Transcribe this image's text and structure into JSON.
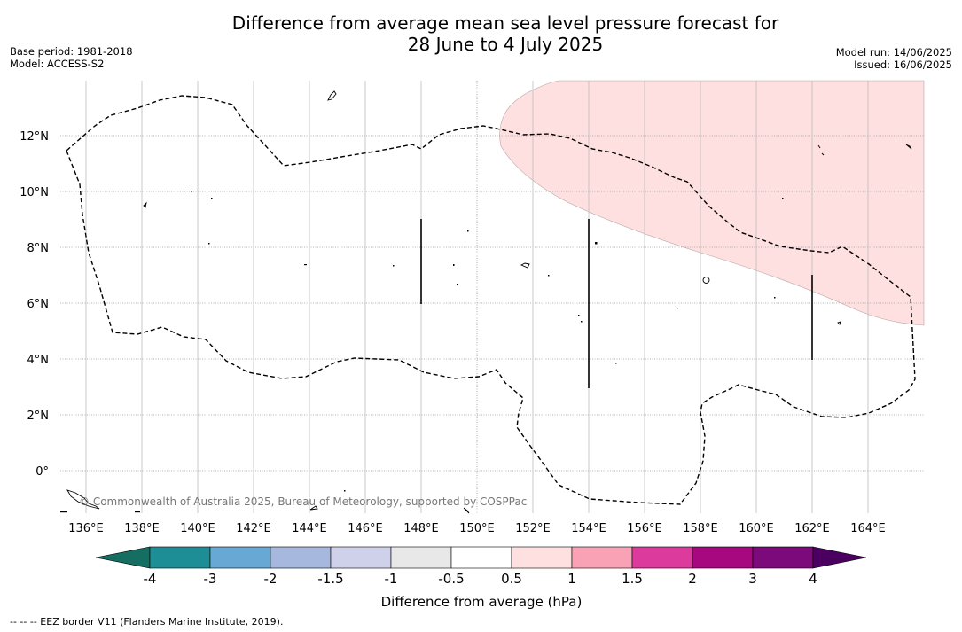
{
  "title": {
    "line1": "Difference from average mean sea level pressure forecast for",
    "line2": "28 June to 4 July 2025"
  },
  "meta_left": {
    "base_period": "Base period: 1981-2018",
    "model": "Model: ACCESS-S2"
  },
  "meta_right": {
    "model_run": "Model run: 14/06/2025",
    "issued": "Issued: 16/06/2025"
  },
  "map": {
    "lon_labels": [
      "136°E",
      "138°E",
      "140°E",
      "142°E",
      "144°E",
      "146°E",
      "148°E",
      "150°E",
      "152°E",
      "154°E",
      "156°E",
      "158°E",
      "160°E",
      "162°E",
      "164°E"
    ],
    "lat_labels": [
      "12°N",
      "10°N",
      "8°N",
      "6°N",
      "4°N",
      "2°N",
      "0°"
    ],
    "copyright": "© Commonwealth of Australia 2025, Bureau of Meteorology, supported by COSPPac",
    "anomaly_region": {
      "category": "0.5 to 1 hPa",
      "color": "#fde0df"
    }
  },
  "colorbar": {
    "label": "Difference from average (hPa)",
    "tick_labels": [
      "-4",
      "-3",
      "-2",
      "-1.5",
      "-1",
      "-0.5",
      "0.5",
      "1",
      "1.5",
      "2",
      "3",
      "4"
    ],
    "colors": [
      "#1e8e96",
      "#68a8d4",
      "#a6b8de",
      "#cfd1ea",
      "#e8e8e8",
      "#ffffff",
      "#fde0df",
      "#f9a2b6",
      "#dc3a9c",
      "#a8087f",
      "#7c0a7b"
    ],
    "under_color": "#146e62",
    "over_color": "#4b0061"
  },
  "footer": "--  --  -- EEZ border V11 (Flanders Marine Institute, 2019)."
}
